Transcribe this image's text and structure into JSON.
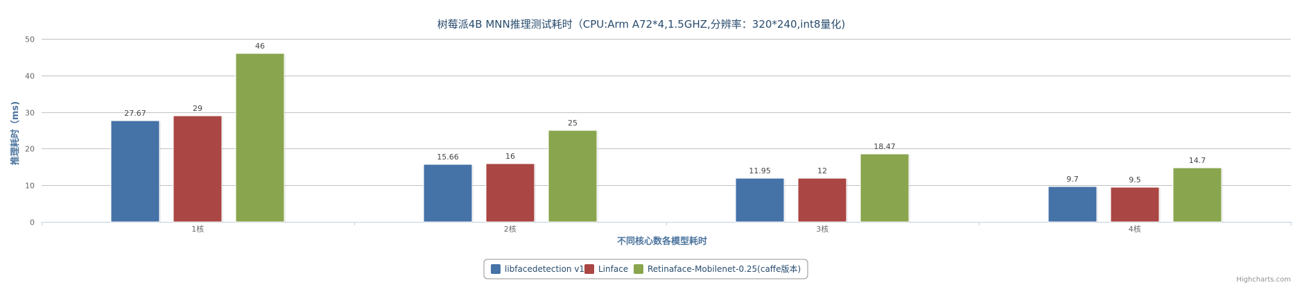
{
  "chart_data": {
    "type": "bar",
    "title": "树莓派4B MNN推理测试耗时（CPU:Arm A72*4,1.5GHZ,分辨率：320*240,int8量化)",
    "xlabel": "不同核心数各模型耗时",
    "ylabel": "推理耗时（ms)",
    "categories": [
      "1核",
      "2核",
      "3核",
      "4核"
    ],
    "ylim": [
      0,
      50
    ],
    "yticks": [
      0,
      10,
      20,
      30,
      40,
      50
    ],
    "grid": true,
    "legend_position": "bottom-center",
    "series": [
      {
        "name": "libfacedetection v1",
        "color": "#4572a7",
        "values": [
          27.67,
          15.66,
          11.95,
          9.7
        ]
      },
      {
        "name": "Linface",
        "color": "#aa4643",
        "values": [
          29,
          16,
          12,
          9.5
        ]
      },
      {
        "name": "Retinaface-Mobilenet-0.25(caffe版本)",
        "color": "#89a54e",
        "values": [
          46,
          25,
          18.47,
          14.7
        ]
      }
    ]
  },
  "credit": "Highcharts.com"
}
